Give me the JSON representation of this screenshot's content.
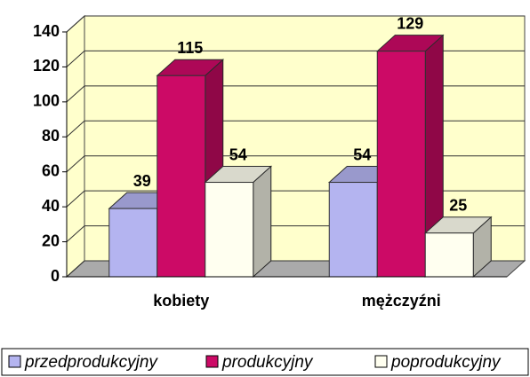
{
  "chart_data": {
    "type": "bar3d",
    "categories": [
      "kobiety",
      "mężczyźni"
    ],
    "series": [
      {
        "name": "przedprodukcyjny",
        "color": "#b4b4f0",
        "values": [
          39,
          54
        ]
      },
      {
        "name": "produkcyjny",
        "color": "#cc0a66",
        "values": [
          115,
          129
        ]
      },
      {
        "name": "poprodukcyjny",
        "color": "#fffff0",
        "values": [
          54,
          25
        ]
      }
    ],
    "ylim": [
      0,
      140
    ],
    "yticks": [
      0,
      20,
      40,
      60,
      80,
      100,
      120,
      140
    ],
    "grid": true,
    "legend": "bottom"
  }
}
